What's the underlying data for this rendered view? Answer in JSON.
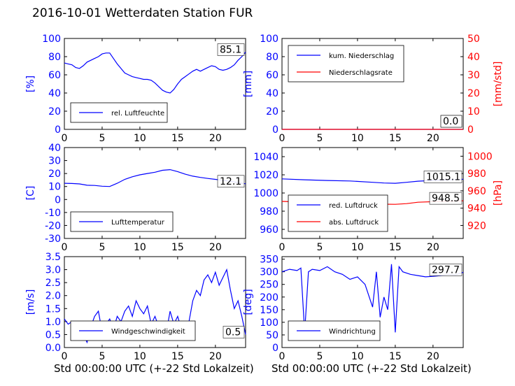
{
  "figure": {
    "title": "2016-10-01 Wetterdaten Station FUR",
    "left_axis_color": "#0000ff",
    "right_axis_color": "#ff0000",
    "xlabel": "Std 00:00:00 UTC (+-22 Std Lokalzeit)"
  },
  "chart_data": [
    {
      "id": "humidity",
      "type": "line",
      "ylabel": "[%]",
      "xlim": [
        0,
        24
      ],
      "ylim": [
        0,
        100
      ],
      "x_ticks": [
        0,
        5,
        10,
        15,
        20
      ],
      "y_ticks": [
        0,
        20,
        40,
        60,
        80,
        100
      ],
      "grid": false,
      "legend": "bottom-left",
      "last_value_label": "85.1",
      "series": [
        {
          "name": "rel. Luftfeuchte",
          "color": "#0000ff",
          "x": [
            0,
            0.5,
            1,
            1.5,
            2,
            2.5,
            3,
            3.5,
            4,
            4.5,
            5,
            5.5,
            6,
            6.5,
            7,
            7.5,
            8,
            8.5,
            9,
            9.5,
            10,
            10.5,
            11,
            11.5,
            12,
            12.5,
            13,
            13.5,
            14,
            14.5,
            15,
            15.5,
            16,
            16.5,
            17,
            17.5,
            18,
            18.5,
            19,
            19.5,
            20,
            20.5,
            21,
            21.5,
            22,
            22.5,
            23,
            23.5,
            24
          ],
          "values": [
            73,
            72,
            71,
            68,
            67,
            70,
            74,
            76,
            78,
            80,
            83,
            84,
            84,
            78,
            72,
            67,
            62,
            60,
            58,
            57,
            56,
            55,
            55,
            54,
            51,
            47,
            43,
            41,
            40,
            44,
            50,
            55,
            58,
            61,
            64,
            66,
            64,
            66,
            68,
            70,
            69,
            66,
            65,
            66,
            68,
            71,
            76,
            80,
            85
          ]
        }
      ]
    },
    {
      "id": "precipitation",
      "type": "line",
      "ylabel": "[mm]",
      "y2label": "[mm/std]",
      "xlim": [
        0,
        24
      ],
      "ylim": [
        0,
        100
      ],
      "y2lim": [
        0,
        50
      ],
      "x_ticks": [
        0,
        5,
        10,
        15,
        20
      ],
      "y_ticks": [
        0,
        20,
        40,
        60,
        80,
        100
      ],
      "y2_ticks": [
        0,
        10,
        20,
        30,
        40,
        50
      ],
      "grid": false,
      "legend": "top-left",
      "last_value_labels": [
        "0.0",
        "0.0"
      ],
      "series": [
        {
          "name": "kum. Niederschlag",
          "axis": "left",
          "color": "#0000ff",
          "x": [
            0,
            24
          ],
          "values": [
            0,
            0
          ]
        },
        {
          "name": "Niederschlagsrate",
          "axis": "right",
          "color": "#ff0000",
          "x": [
            0,
            24
          ],
          "values": [
            0,
            0
          ]
        }
      ]
    },
    {
      "id": "temperature",
      "type": "line",
      "ylabel": "[C]",
      "xlim": [
        0,
        24
      ],
      "ylim": [
        -30,
        40
      ],
      "x_ticks": [
        0,
        5,
        10,
        15,
        20
      ],
      "y_ticks": [
        -30,
        -20,
        -10,
        0,
        10,
        20,
        30,
        40
      ],
      "grid": false,
      "legend": "bottom-left",
      "last_value_label": "12.1",
      "series": [
        {
          "name": "Lufttemperatur",
          "color": "#0000ff",
          "x": [
            0,
            1,
            2,
            3,
            4,
            5,
            6,
            7,
            8,
            9,
            10,
            11,
            12,
            13,
            14,
            15,
            16,
            17,
            18,
            19,
            20,
            21,
            22,
            23,
            24
          ],
          "values": [
            12.5,
            12.3,
            12.0,
            11.0,
            10.8,
            10.2,
            10.0,
            12.5,
            15.5,
            17.5,
            19.0,
            20.0,
            21.0,
            22.5,
            23.0,
            21.5,
            19.5,
            18.0,
            17.0,
            16.2,
            15.5,
            14.8,
            14.0,
            13.0,
            12.1
          ]
        }
      ]
    },
    {
      "id": "pressure",
      "type": "line",
      "y2label": "[hPa]",
      "xlim": [
        0,
        24
      ],
      "ylim": [
        950,
        1050
      ],
      "y2lim": [
        905,
        1010
      ],
      "x_ticks": [
        0,
        5,
        10,
        15,
        20
      ],
      "y_ticks": [
        960,
        980,
        1000,
        1020,
        1040
      ],
      "y2_ticks": [
        920,
        940,
        960,
        980,
        1000
      ],
      "grid": false,
      "legend": "bottom-left",
      "last_value_labels": [
        "1015.1",
        "948.5"
      ],
      "series": [
        {
          "name": "red. Luftdruck",
          "axis": "left",
          "color": "#0000ff",
          "x": [
            0,
            3,
            6,
            9,
            12,
            13.5,
            15,
            16.5,
            18,
            21,
            24
          ],
          "values": [
            1015.5,
            1014.5,
            1013.8,
            1013.2,
            1011.8,
            1011.0,
            1010.7,
            1011.8,
            1013.0,
            1014.2,
            1015.1
          ]
        },
        {
          "name": "abs. Luftdruck",
          "axis": "right",
          "color": "#ff0000",
          "x": [
            0,
            3,
            6,
            9,
            12,
            13.5,
            15,
            16.5,
            18,
            21,
            24
          ],
          "values": [
            947.8,
            947.0,
            946.5,
            946.0,
            945.0,
            944.6,
            944.4,
            945.2,
            946.8,
            947.8,
            948.5
          ]
        }
      ]
    },
    {
      "id": "windspeed",
      "type": "line",
      "ylabel": "[m/s]",
      "xlim": [
        0,
        24
      ],
      "ylim": [
        0,
        3.5
      ],
      "x_ticks": [
        0,
        5,
        10,
        15,
        20
      ],
      "y_ticks": [
        0.0,
        0.5,
        1.0,
        1.5,
        2.0,
        2.5,
        3.0,
        3.5
      ],
      "grid": false,
      "legend": "bottom-left",
      "last_value_label": "0.5",
      "series": [
        {
          "name": "Windgeschwindigkeit",
          "color": "#0000ff",
          "x": [
            0,
            0.5,
            1,
            1.5,
            2,
            2.5,
            3,
            3.5,
            4,
            4.5,
            5,
            5.5,
            6,
            6.5,
            7,
            7.5,
            8,
            8.5,
            9,
            9.5,
            10,
            10.5,
            11,
            11.5,
            12,
            12.5,
            13,
            13.5,
            14,
            14.5,
            15,
            15.5,
            16,
            16.5,
            17,
            17.5,
            18,
            18.5,
            19,
            19.5,
            20,
            20.5,
            21,
            21.5,
            22,
            22.5,
            23,
            23.5,
            24
          ],
          "values": [
            1.1,
            0.9,
            1.0,
            0.6,
            0.8,
            0.5,
            0.2,
            0.8,
            1.2,
            1.4,
            0.6,
            0.9,
            1.1,
            0.7,
            1.2,
            1.0,
            1.4,
            1.6,
            1.2,
            1.8,
            1.5,
            1.3,
            1.6,
            0.9,
            1.2,
            0.8,
            1.0,
            0.6,
            1.4,
            0.9,
            1.2,
            0.7,
            0.6,
            1.0,
            1.8,
            2.2,
            2.0,
            2.6,
            2.8,
            2.5,
            2.9,
            2.4,
            2.7,
            3.0,
            2.2,
            1.5,
            1.8,
            1.2,
            0.5
          ]
        }
      ]
    },
    {
      "id": "winddirection",
      "type": "line",
      "ylabel": "[deg]",
      "xlim": [
        0,
        24
      ],
      "ylim": [
        0,
        360
      ],
      "x_ticks": [
        0,
        5,
        10,
        15,
        20
      ],
      "y_ticks": [
        0,
        50,
        100,
        150,
        200,
        250,
        300,
        350
      ],
      "grid": false,
      "legend": "bottom-left",
      "last_value_label": "297.7",
      "series": [
        {
          "name": "Windrichtung",
          "color": "#0000ff",
          "x": [
            0,
            1,
            2,
            2.5,
            3,
            3.5,
            4,
            5,
            6,
            7,
            8,
            9,
            10,
            11,
            12,
            12.5,
            13,
            13.5,
            14,
            14.5,
            15,
            15.5,
            16,
            17,
            18,
            19,
            20,
            21,
            22,
            23,
            24
          ],
          "values": [
            300,
            310,
            305,
            315,
            60,
            300,
            310,
            305,
            320,
            300,
            290,
            270,
            280,
            250,
            160,
            300,
            120,
            200,
            150,
            330,
            60,
            320,
            300,
            290,
            285,
            280,
            282,
            285,
            290,
            288,
            298
          ]
        }
      ]
    }
  ]
}
